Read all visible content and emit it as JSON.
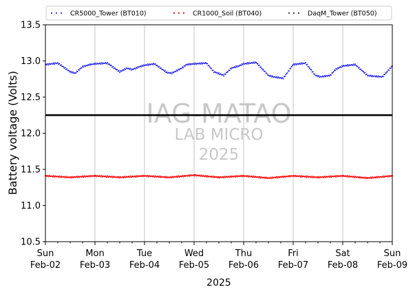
{
  "chart_data": {
    "type": "scatter",
    "xlabel": "2025",
    "ylabel": "Battery voltage (Volts)",
    "ylim": [
      10.5,
      13.5
    ],
    "xlim": [
      "2025-02-02",
      "2025-02-09"
    ],
    "grid": "vertical lines at day boundaries",
    "legend_position": "top",
    "yticks": [
      "10.5",
      "11.0",
      "11.5",
      "12.0",
      "12.5",
      "13.0",
      "13.5"
    ],
    "xticks": [
      {
        "day": "Sun",
        "date": "Feb-02"
      },
      {
        "day": "Mon",
        "date": "Feb-03"
      },
      {
        "day": "Tue",
        "date": "Feb-04"
      },
      {
        "day": "Wed",
        "date": "Feb-05"
      },
      {
        "day": "Thu",
        "date": "Feb-06"
      },
      {
        "day": "Fri",
        "date": "Feb-07"
      },
      {
        "day": "Sat",
        "date": "Feb-08"
      },
      {
        "day": "Sun",
        "date": "Feb-09"
      }
    ],
    "watermark": [
      "IAG-MATAO",
      "LAB MICRO",
      "2025"
    ],
    "reference_line": {
      "y": 12.25,
      "color": "#000000"
    },
    "series": [
      {
        "name": "CR5000_Tower (BT010)",
        "color": "#2b2bf0",
        "x_days": [
          0,
          0.25,
          0.5,
          0.6,
          0.75,
          0.9,
          1,
          1.25,
          1.5,
          1.65,
          1.75,
          1.9,
          2,
          2.2,
          2.45,
          2.55,
          2.75,
          2.85,
          3,
          3.25,
          3.4,
          3.6,
          3.75,
          3.9,
          4,
          4.25,
          4.5,
          4.6,
          4.8,
          5,
          5.25,
          5.45,
          5.55,
          5.75,
          5.85,
          6,
          6.25,
          6.5,
          6.6,
          6.8,
          7
        ],
        "values": [
          12.95,
          12.97,
          12.85,
          12.83,
          12.92,
          12.95,
          12.96,
          12.97,
          12.85,
          12.9,
          12.88,
          12.92,
          12.94,
          12.96,
          12.84,
          12.83,
          12.9,
          12.95,
          12.96,
          12.97,
          12.85,
          12.8,
          12.9,
          12.93,
          12.96,
          12.98,
          12.8,
          12.78,
          12.76,
          12.95,
          12.97,
          12.8,
          12.78,
          12.8,
          12.88,
          12.93,
          12.95,
          12.8,
          12.79,
          12.78,
          12.93
        ]
      },
      {
        "name": "CR1000_Soil (BT040)",
        "color": "#ff0000",
        "x_days": [
          0,
          0.5,
          1,
          1.5,
          2,
          2.5,
          3,
          3.5,
          4,
          4.5,
          5,
          5.5,
          6,
          6.5,
          7
        ],
        "values": [
          11.41,
          11.39,
          11.41,
          11.39,
          11.41,
          11.39,
          11.42,
          11.39,
          11.41,
          11.38,
          11.41,
          11.39,
          11.41,
          11.38,
          11.41
        ]
      },
      {
        "name": "DaqM_Tower (BT050)",
        "color": "#333333",
        "x_days": [],
        "values": []
      }
    ]
  }
}
